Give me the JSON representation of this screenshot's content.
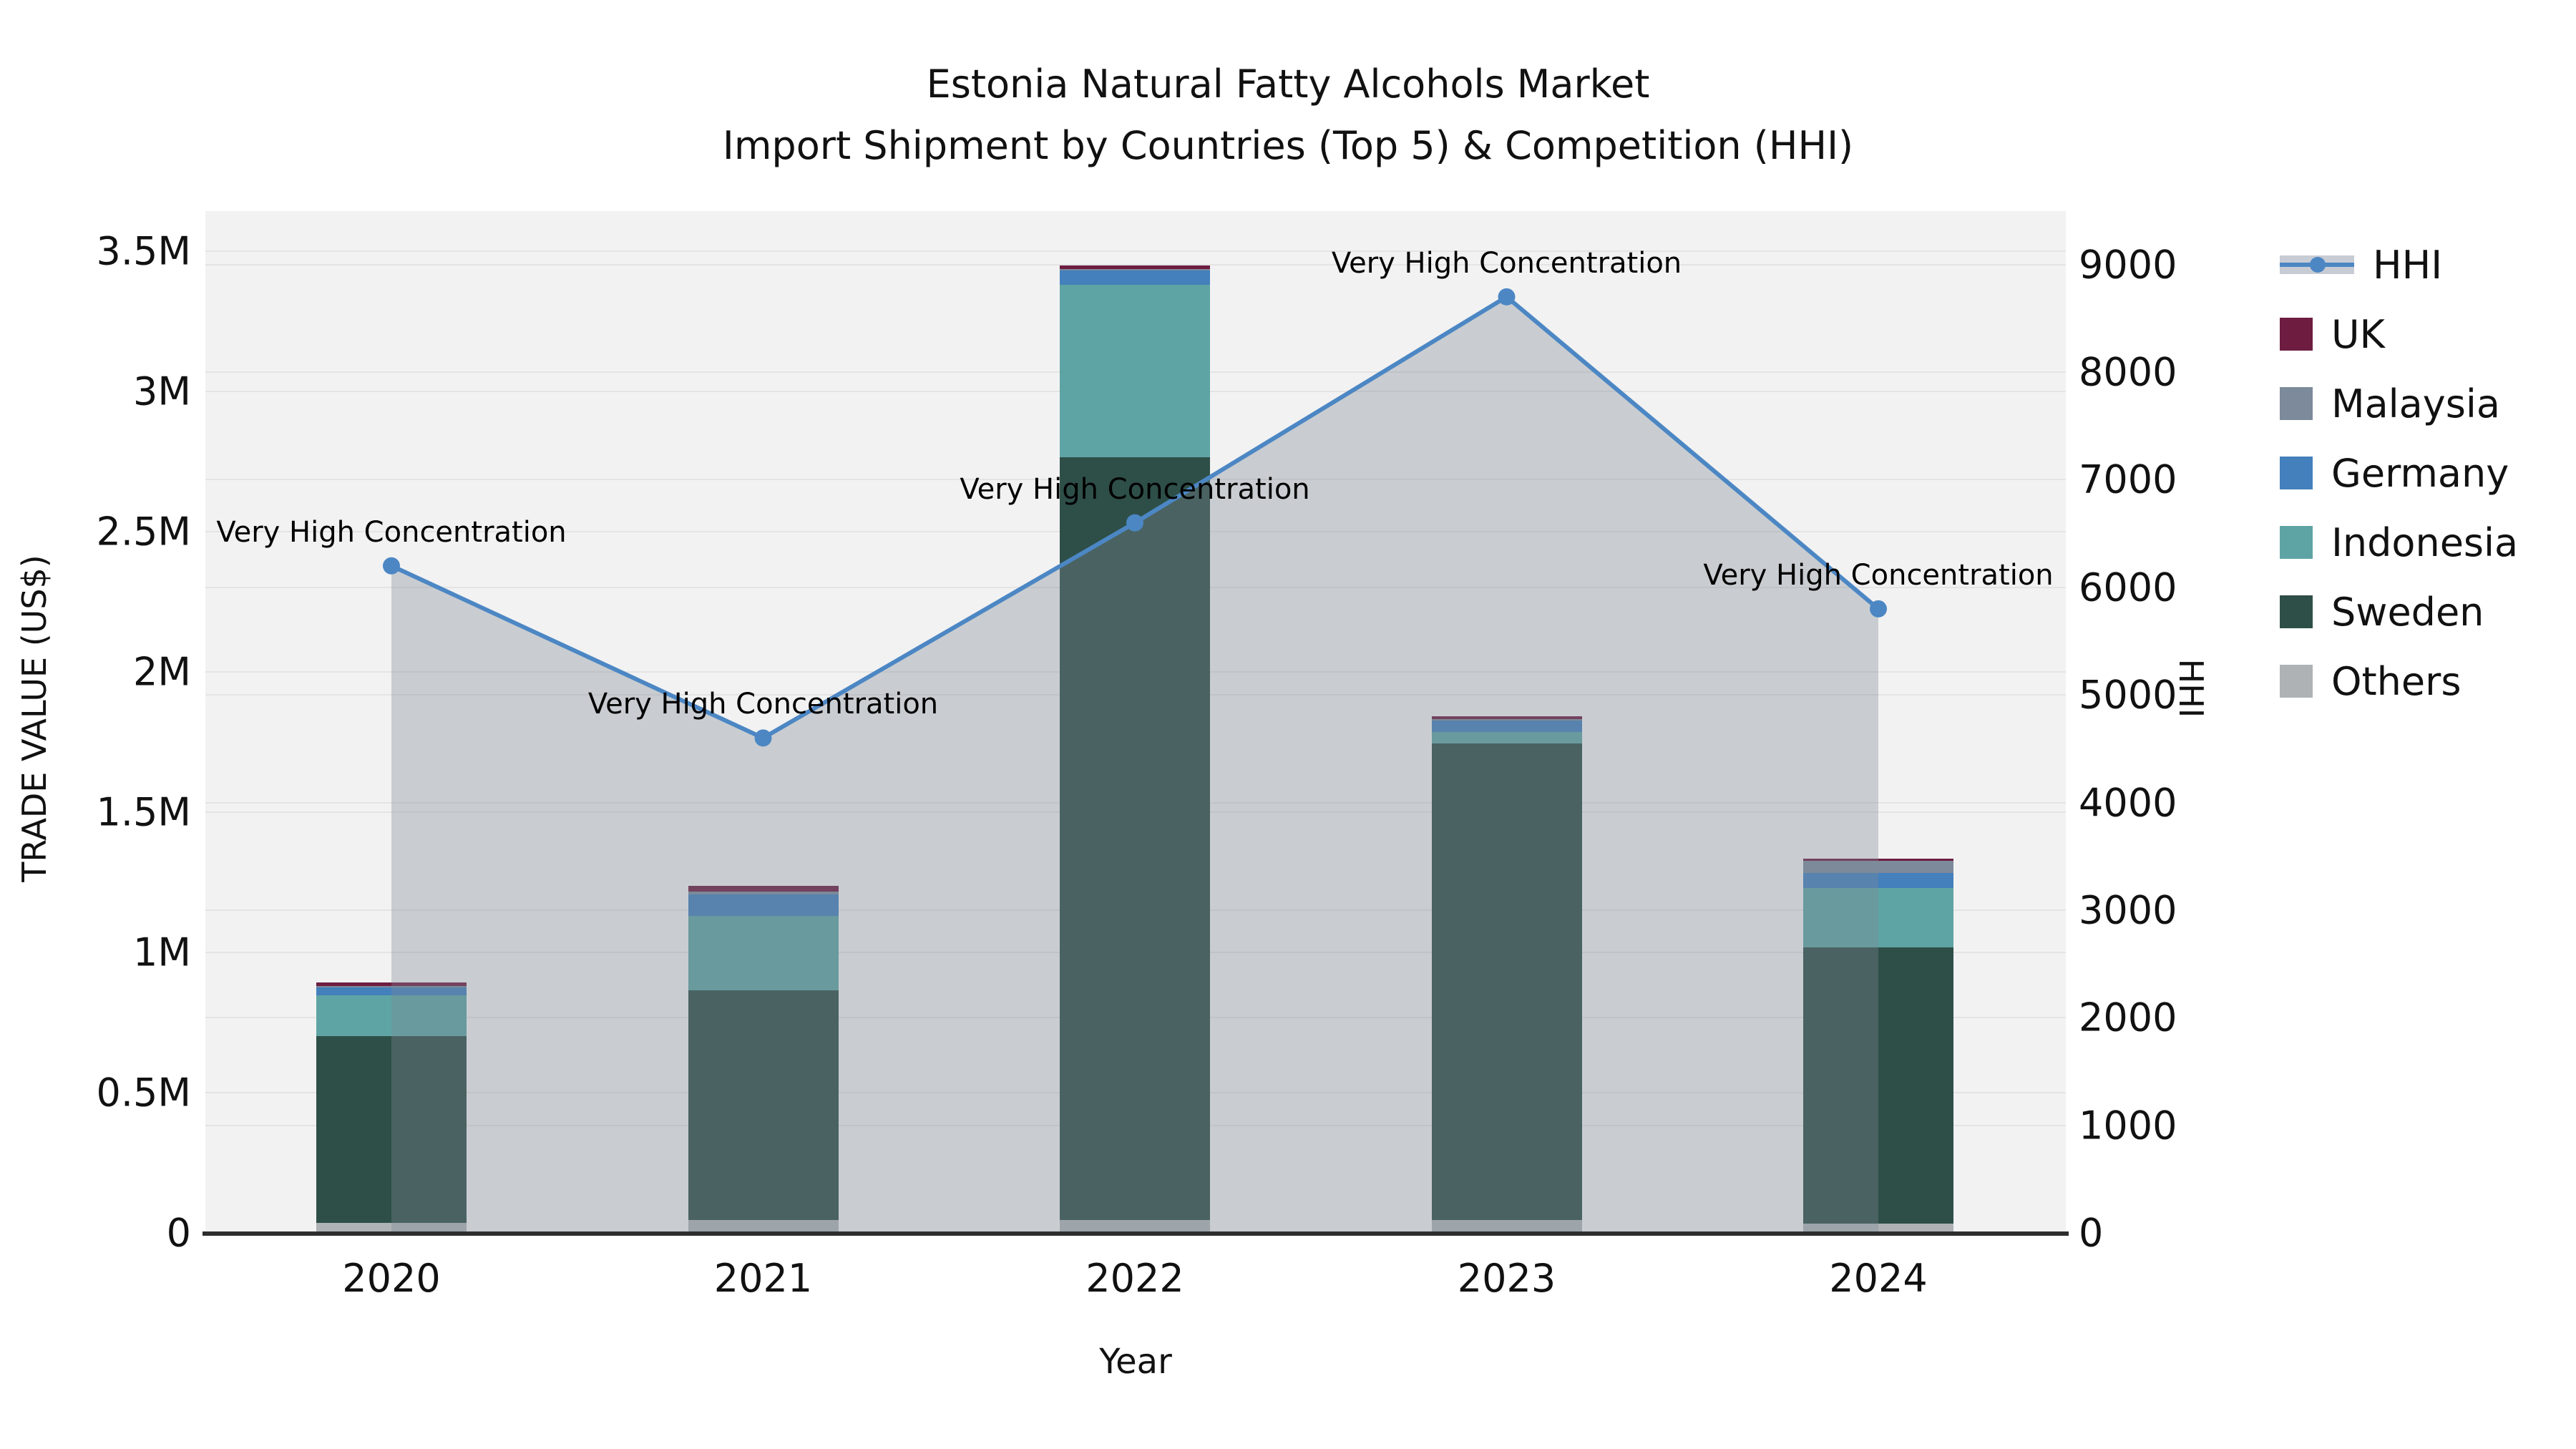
{
  "title": {
    "line1": "Estonia Natural Fatty Alcohols Market",
    "line2": "Import Shipment by Countries (Top 5) & Competition (HHI)"
  },
  "axes": {
    "left": {
      "title": "TRADE VALUE (US$)",
      "ticks": [
        {
          "label": "0",
          "value": 0
        },
        {
          "label": "0.5M",
          "value": 500000
        },
        {
          "label": "1M",
          "value": 1000000
        },
        {
          "label": "1.5M",
          "value": 1500000
        },
        {
          "label": "2M",
          "value": 2000000
        },
        {
          "label": "2.5M",
          "value": 2500000
        },
        {
          "label": "3M",
          "value": 3000000
        },
        {
          "label": "3.5M",
          "value": 3500000
        }
      ]
    },
    "right": {
      "title": "HHI",
      "ticks": [
        {
          "label": "0",
          "value": 0
        },
        {
          "label": "1000",
          "value": 1000
        },
        {
          "label": "2000",
          "value": 2000
        },
        {
          "label": "3000",
          "value": 3000
        },
        {
          "label": "4000",
          "value": 4000
        },
        {
          "label": "5000",
          "value": 5000
        },
        {
          "label": "6000",
          "value": 6000
        },
        {
          "label": "7000",
          "value": 7000
        },
        {
          "label": "8000",
          "value": 8000
        },
        {
          "label": "9000",
          "value": 9000
        }
      ]
    },
    "x": {
      "title": "Year",
      "ticks": [
        "2020",
        "2021",
        "2022",
        "2023",
        "2024"
      ]
    }
  },
  "legend": {
    "items": [
      {
        "label": "HHI",
        "type": "line",
        "color": "#4c87c4"
      },
      {
        "label": "UK",
        "type": "box",
        "color": "#6e1d41"
      },
      {
        "label": "Malaysia",
        "type": "box",
        "color": "#7c8a9b"
      },
      {
        "label": "Germany",
        "type": "box",
        "color": "#4380bc"
      },
      {
        "label": "Indonesia",
        "type": "box",
        "color": "#5fa4a4"
      },
      {
        "label": "Sweden",
        "type": "box",
        "color": "#2e4f48"
      },
      {
        "label": "Others",
        "type": "box",
        "color": "#aeb2b5"
      }
    ]
  },
  "chart_data": {
    "type": "bar+line",
    "title": "Estonia Natural Fatty Alcohols Market — Import Shipment by Countries (Top 5) & Competition (HHI)",
    "categories": [
      "2020",
      "2021",
      "2022",
      "2023",
      "2024"
    ],
    "bar_stack_order_bottom_to_top": [
      "Others",
      "Sweden",
      "Indonesia",
      "Germany",
      "Malaysia",
      "UK"
    ],
    "series": [
      {
        "name": "Others",
        "color": "#aeb2b5",
        "values": [
          36000,
          46000,
          46000,
          46000,
          33000
        ]
      },
      {
        "name": "Sweden",
        "color": "#2e4f48",
        "values": [
          665000,
          820000,
          2720000,
          1700000,
          985000
        ]
      },
      {
        "name": "Indonesia",
        "color": "#5fa4a4",
        "values": [
          145000,
          263000,
          615000,
          40000,
          212000
        ]
      },
      {
        "name": "Germany",
        "color": "#4380bc",
        "values": [
          30000,
          77000,
          51000,
          40000,
          54000
        ]
      },
      {
        "name": "Malaysia",
        "color": "#7c8a9b",
        "values": [
          5000,
          10000,
          5000,
          5000,
          43000
        ]
      },
      {
        "name": "UK",
        "color": "#6e1d41",
        "values": [
          13000,
          20000,
          13000,
          10000,
          8000
        ]
      }
    ],
    "bar_totals": [
      894000,
      1236000,
      3450000,
      1841000,
      1335000
    ],
    "line_series": {
      "name": "HHI",
      "axis": "right",
      "color": "#4c87c4",
      "area_fill": "rgba(126,137,148,0.35)",
      "values": [
        6200,
        4600,
        6600,
        8700,
        5800
      ]
    },
    "annotations": [
      "Very High Concentration",
      "Very High Concentration",
      "Very High Concentration",
      "Very High Concentration",
      "Very High Concentration"
    ],
    "xlabel": "Year",
    "ylabel_left": "TRADE VALUE (US$)",
    "ylabel_right": "HHI",
    "ylim_left": [
      0,
      3642857
    ],
    "ylim_right": [
      0,
      9497
    ],
    "grid": true,
    "legend_position": "right"
  }
}
